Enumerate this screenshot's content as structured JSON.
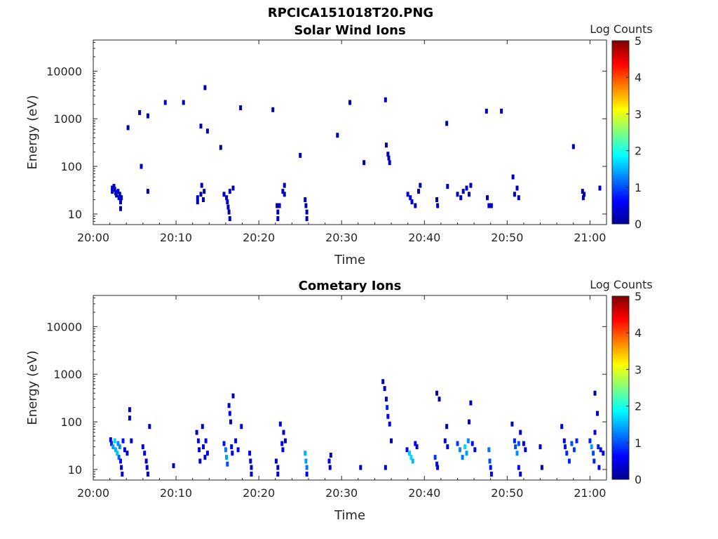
{
  "figure_title": "RPCICA151018T20.PNG",
  "colormap": [
    "#00008f",
    "#0000ff",
    "#0080ff",
    "#00ffff",
    "#80ff80",
    "#ffff00",
    "#ff8000",
    "#ff0000",
    "#800000"
  ],
  "chart_data": [
    {
      "type": "heatmap",
      "title": "Solar Wind Ions",
      "xlabel": "Time",
      "ylabel": "Energy (eV)",
      "xlim_minutes_after_20_00": [
        0,
        62
      ],
      "ylim": [
        6,
        45000
      ],
      "yscale": "log",
      "x_ticks": [
        "20:00",
        "20:10",
        "20:20",
        "20:30",
        "20:40",
        "20:50",
        "21:00"
      ],
      "y_ticks": [
        "10",
        "100",
        "1000",
        "10000"
      ],
      "colorbar": {
        "label": "Log Counts",
        "ticks": [
          "0",
          "1",
          "2",
          "3",
          "4",
          "5"
        ],
        "range": [
          0,
          5
        ]
      },
      "cells": [
        [
          2.3,
          35,
          0.3
        ],
        [
          2.3,
          30,
          0.3
        ],
        [
          2.5,
          38,
          0.3
        ],
        [
          2.6,
          33,
          0.3
        ],
        [
          2.7,
          28,
          0.4
        ],
        [
          2.8,
          25,
          0.3
        ],
        [
          3.0,
          30,
          0.4
        ],
        [
          3.1,
          22,
          0.3
        ],
        [
          3.2,
          26,
          0.3
        ],
        [
          3.3,
          18,
          0.3
        ],
        [
          3.3,
          13,
          0.2
        ],
        [
          3.4,
          22,
          0.3
        ],
        [
          4.2,
          650,
          0.2
        ],
        [
          5.6,
          1350,
          0.2
        ],
        [
          5.8,
          100,
          0.2
        ],
        [
          6.6,
          30,
          0.2
        ],
        [
          6.6,
          1150,
          0.2
        ],
        [
          8.7,
          2200,
          0.2
        ],
        [
          10.9,
          2200,
          0.2
        ],
        [
          12.6,
          22,
          0.2
        ],
        [
          12.6,
          18,
          0.2
        ],
        [
          13.0,
          700,
          0.2
        ],
        [
          13.0,
          26,
          0.2
        ],
        [
          13.1,
          40,
          0.2
        ],
        [
          13.3,
          20,
          0.2
        ],
        [
          13.4,
          30,
          0.2
        ],
        [
          13.5,
          4500,
          0.2
        ],
        [
          13.8,
          550,
          0.2
        ],
        [
          15.4,
          250,
          0.2
        ],
        [
          15.8,
          26,
          0.3
        ],
        [
          16.1,
          22,
          0.3
        ],
        [
          16.2,
          18,
          0.3
        ],
        [
          16.3,
          14,
          0.3
        ],
        [
          16.4,
          11,
          0.2
        ],
        [
          16.5,
          8,
          0.2
        ],
        [
          16.5,
          30,
          0.2
        ],
        [
          16.9,
          35,
          0.2
        ],
        [
          17.8,
          1700,
          0.2
        ],
        [
          21.7,
          1550,
          0.2
        ],
        [
          22.2,
          15,
          0.2
        ],
        [
          22.3,
          11,
          0.2
        ],
        [
          22.3,
          8,
          0.2
        ],
        [
          22.5,
          15,
          0.2
        ],
        [
          22.9,
          30,
          0.2
        ],
        [
          23.1,
          26,
          0.2
        ],
        [
          23.1,
          40,
          0.2
        ],
        [
          25.0,
          170,
          0.2
        ],
        [
          25.6,
          20,
          0.2
        ],
        [
          25.7,
          15,
          0.2
        ],
        [
          25.8,
          11,
          0.2
        ],
        [
          25.8,
          8,
          0.2
        ],
        [
          29.5,
          450,
          0.2
        ],
        [
          31.0,
          2200,
          0.2
        ],
        [
          32.7,
          120,
          0.2
        ],
        [
          35.3,
          2500,
          0.2
        ],
        [
          35.4,
          280,
          0.2
        ],
        [
          35.6,
          180,
          0.2
        ],
        [
          35.7,
          150,
          0.2
        ],
        [
          35.8,
          120,
          0.2
        ],
        [
          38.0,
          26,
          0.4
        ],
        [
          38.3,
          22,
          0.4
        ],
        [
          38.5,
          18,
          0.3
        ],
        [
          38.9,
          15,
          0.2
        ],
        [
          39.3,
          30,
          0.2
        ],
        [
          39.5,
          40,
          0.2
        ],
        [
          41.5,
          20,
          0.2
        ],
        [
          41.6,
          15,
          0.2
        ],
        [
          42.7,
          800,
          0.2
        ],
        [
          42.8,
          38,
          0.2
        ],
        [
          44.0,
          26,
          0.3
        ],
        [
          44.4,
          22,
          0.3
        ],
        [
          44.7,
          30,
          0.4
        ],
        [
          45.1,
          35,
          0.3
        ],
        [
          45.4,
          26,
          0.3
        ],
        [
          45.6,
          40,
          0.3
        ],
        [
          47.5,
          1450,
          0.2
        ],
        [
          47.6,
          22,
          0.2
        ],
        [
          47.8,
          15,
          0.4
        ],
        [
          48.1,
          15,
          0.4
        ],
        [
          49.3,
          1450,
          0.2
        ],
        [
          50.7,
          60,
          0.2
        ],
        [
          50.9,
          26,
          0.2
        ],
        [
          51.2,
          35,
          0.3
        ],
        [
          51.4,
          22,
          0.2
        ],
        [
          58.0,
          260,
          0.2
        ],
        [
          59.1,
          30,
          0.2
        ],
        [
          59.2,
          22,
          0.2
        ],
        [
          59.3,
          26,
          0.2
        ],
        [
          61.2,
          35,
          0.2
        ]
      ]
    },
    {
      "type": "heatmap",
      "title": "Cometary Ions",
      "xlabel": "Time",
      "ylabel": "Energy (eV)",
      "xlim_minutes_after_20_00": [
        0,
        62
      ],
      "ylim": [
        6,
        45000
      ],
      "yscale": "log",
      "x_ticks": [
        "20:00",
        "20:10",
        "20:20",
        "20:30",
        "20:40",
        "20:50",
        "21:00"
      ],
      "y_ticks": [
        "10",
        "100",
        "1000",
        "10000"
      ],
      "colorbar": {
        "label": "Log Counts",
        "ticks": [
          "0",
          "1",
          "2",
          "3",
          "4",
          "5"
        ],
        "range": [
          0,
          5
        ]
      },
      "cells": [
        [
          2.1,
          42,
          0.6
        ],
        [
          2.2,
          35,
          0.8
        ],
        [
          2.4,
          30,
          1.4
        ],
        [
          2.6,
          40,
          1.7
        ],
        [
          2.7,
          26,
          1.5
        ],
        [
          2.9,
          22,
          1.6
        ],
        [
          3.0,
          35,
          1.3
        ],
        [
          3.1,
          18,
          1.1
        ],
        [
          3.2,
          30,
          1.3
        ],
        [
          3.3,
          15,
          0.7
        ],
        [
          3.4,
          11,
          0.5
        ],
        [
          3.5,
          8,
          0.4
        ],
        [
          3.6,
          40,
          0.7
        ],
        [
          3.8,
          26,
          0.5
        ],
        [
          4.1,
          22,
          0.3
        ],
        [
          4.4,
          180,
          0.3
        ],
        [
          4.4,
          120,
          0.2
        ],
        [
          4.6,
          40,
          0.4
        ],
        [
          6.0,
          30,
          0.5
        ],
        [
          6.2,
          22,
          0.5
        ],
        [
          6.4,
          15,
          0.4
        ],
        [
          6.5,
          11,
          0.3
        ],
        [
          6.6,
          8,
          0.3
        ],
        [
          6.8,
          80,
          0.2
        ],
        [
          9.7,
          12,
          0.2
        ],
        [
          12.5,
          60,
          0.3
        ],
        [
          12.7,
          40,
          0.6
        ],
        [
          12.8,
          26,
          0.5
        ],
        [
          12.9,
          15,
          0.4
        ],
        [
          13.2,
          80,
          0.3
        ],
        [
          13.3,
          30,
          0.6
        ],
        [
          13.5,
          18,
          0.4
        ],
        [
          13.6,
          40,
          0.5
        ],
        [
          13.8,
          22,
          0.4
        ],
        [
          15.8,
          35,
          0.7
        ],
        [
          16.0,
          26,
          1.2
        ],
        [
          16.1,
          18,
          1.4
        ],
        [
          16.2,
          13,
          1.0
        ],
        [
          16.4,
          220,
          0.4
        ],
        [
          16.5,
          150,
          0.5
        ],
        [
          16.6,
          100,
          0.4
        ],
        [
          16.7,
          30,
          0.6
        ],
        [
          16.8,
          22,
          0.5
        ],
        [
          16.9,
          350,
          0.2
        ],
        [
          17.2,
          40,
          0.5
        ],
        [
          17.5,
          26,
          0.5
        ],
        [
          17.9,
          80,
          0.2
        ],
        [
          18.9,
          22,
          0.5
        ],
        [
          19.0,
          15,
          0.4
        ],
        [
          19.1,
          11,
          0.3
        ],
        [
          19.1,
          8,
          0.3
        ],
        [
          22.1,
          15,
          0.3
        ],
        [
          22.3,
          11,
          0.3
        ],
        [
          22.3,
          8,
          0.3
        ],
        [
          22.6,
          90,
          0.4
        ],
        [
          22.8,
          35,
          0.6
        ],
        [
          22.9,
          26,
          0.5
        ],
        [
          23.0,
          60,
          0.4
        ],
        [
          23.2,
          40,
          0.4
        ],
        [
          25.6,
          22,
          1.5
        ],
        [
          25.7,
          15,
          1.4
        ],
        [
          25.8,
          11,
          1.2
        ],
        [
          25.8,
          8,
          0.6
        ],
        [
          28.5,
          15,
          0.4
        ],
        [
          28.6,
          11,
          0.3
        ],
        [
          28.7,
          20,
          0.3
        ],
        [
          32.3,
          11,
          0.3
        ],
        [
          35.0,
          700,
          0.3
        ],
        [
          35.2,
          500,
          0.3
        ],
        [
          35.4,
          300,
          0.4
        ],
        [
          35.5,
          200,
          0.8
        ],
        [
          35.6,
          130,
          0.6
        ],
        [
          35.8,
          90,
          0.4
        ],
        [
          36.0,
          40,
          0.2
        ],
        [
          35.3,
          11,
          0.2
        ],
        [
          37.9,
          26,
          0.6
        ],
        [
          38.2,
          22,
          1.6
        ],
        [
          38.4,
          18,
          1.7
        ],
        [
          38.6,
          15,
          1.5
        ],
        [
          38.9,
          35,
          0.6
        ],
        [
          39.1,
          30,
          0.4
        ],
        [
          41.3,
          18,
          0.9
        ],
        [
          41.5,
          13,
          0.7
        ],
        [
          41.6,
          11,
          0.5
        ],
        [
          41.5,
          400,
          0.2
        ],
        [
          41.8,
          300,
          0.2
        ],
        [
          42.5,
          40,
          0.6
        ],
        [
          42.8,
          30,
          0.5
        ],
        [
          42.7,
          80,
          0.3
        ],
        [
          44.0,
          35,
          0.9
        ],
        [
          44.3,
          26,
          1.3
        ],
        [
          44.6,
          18,
          1.2
        ],
        [
          44.9,
          30,
          1.7
        ],
        [
          45.1,
          22,
          1.4
        ],
        [
          45.3,
          40,
          1.3
        ],
        [
          45.4,
          100,
          0.4
        ],
        [
          45.6,
          250,
          0.3
        ],
        [
          45.8,
          35,
          0.7
        ],
        [
          46.1,
          26,
          0.5
        ],
        [
          47.8,
          26,
          1.2
        ],
        [
          47.9,
          15,
          1.0
        ],
        [
          48.0,
          11,
          0.7
        ],
        [
          48.1,
          8,
          0.5
        ],
        [
          50.6,
          90,
          0.4
        ],
        [
          50.9,
          40,
          0.8
        ],
        [
          51.0,
          30,
          1.0
        ],
        [
          51.2,
          22,
          1.3
        ],
        [
          51.4,
          35,
          1.0
        ],
        [
          51.6,
          60,
          0.5
        ],
        [
          51.4,
          11,
          0.6
        ],
        [
          51.6,
          8,
          0.4
        ],
        [
          52.0,
          35,
          0.6
        ],
        [
          52.2,
          26,
          0.4
        ],
        [
          54.0,
          30,
          0.5
        ],
        [
          54.2,
          11,
          0.3
        ],
        [
          56.6,
          80,
          0.4
        ],
        [
          56.9,
          40,
          0.6
        ],
        [
          57.0,
          30,
          0.7
        ],
        [
          57.2,
          22,
          0.8
        ],
        [
          57.5,
          15,
          0.8
        ],
        [
          57.8,
          35,
          1.0
        ],
        [
          58.1,
          26,
          0.9
        ],
        [
          58.4,
          40,
          0.8
        ],
        [
          60.0,
          40,
          0.8
        ],
        [
          60.2,
          30,
          1.4
        ],
        [
          60.4,
          22,
          1.0
        ],
        [
          60.5,
          15,
          0.8
        ],
        [
          60.6,
          60,
          0.6
        ],
        [
          60.6,
          400,
          0.2
        ],
        [
          60.9,
          150,
          0.3
        ],
        [
          61.0,
          30,
          0.8
        ],
        [
          61.1,
          11,
          0.5
        ],
        [
          61.3,
          26,
          0.7
        ],
        [
          61.6,
          22,
          0.5
        ]
      ]
    }
  ]
}
